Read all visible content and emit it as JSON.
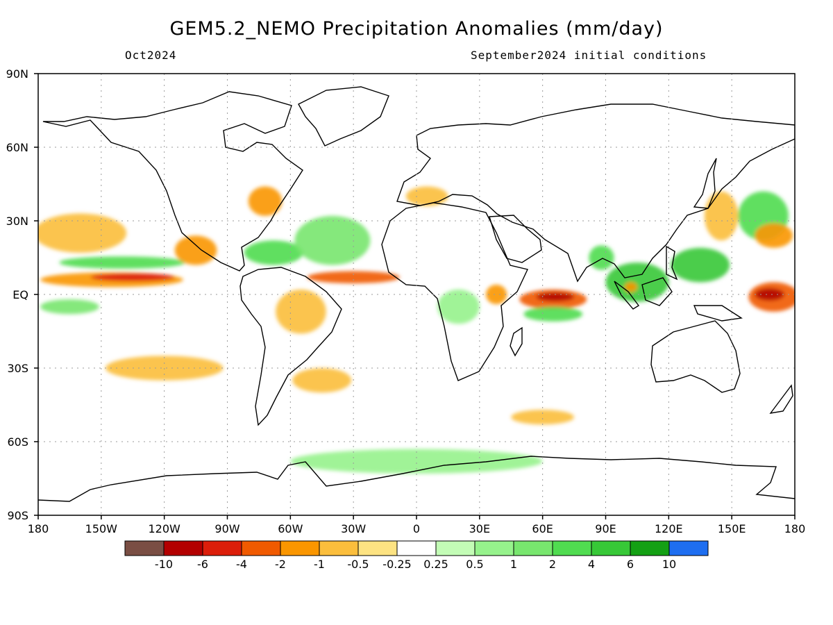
{
  "title": "GEM5.2_NEMO Precipitation Anomalies (mm/day)",
  "subtitle_left": "Oct2024",
  "subtitle_right": "September2024 initial conditions",
  "map": {
    "lon_range": [
      -180,
      180
    ],
    "lat_range": [
      -90,
      90
    ],
    "grid": "dotted",
    "lat_labels": [
      {
        "lat": 90,
        "label": "90N"
      },
      {
        "lat": 60,
        "label": "60N"
      },
      {
        "lat": 30,
        "label": "30N"
      },
      {
        "lat": 0,
        "label": "EQ"
      },
      {
        "lat": -30,
        "label": "30S"
      },
      {
        "lat": -60,
        "label": "60S"
      },
      {
        "lat": -90,
        "label": "90S"
      }
    ],
    "lon_labels": [
      {
        "lon": -180,
        "label": "180"
      },
      {
        "lon": -150,
        "label": "150W"
      },
      {
        "lon": -120,
        "label": "120W"
      },
      {
        "lon": -90,
        "label": "90W"
      },
      {
        "lon": -60,
        "label": "60W"
      },
      {
        "lon": -30,
        "label": "30W"
      },
      {
        "lon": 0,
        "label": "0"
      },
      {
        "lon": 30,
        "label": "30E"
      },
      {
        "lon": 60,
        "label": "60E"
      },
      {
        "lon": 90,
        "label": "90E"
      },
      {
        "lon": 120,
        "label": "120E"
      },
      {
        "lon": 150,
        "label": "150E"
      },
      {
        "lon": 180,
        "label": "180"
      }
    ]
  },
  "colorbar": {
    "colors": [
      "#7a4e44",
      "#b30000",
      "#dc1e0a",
      "#f05a00",
      "#fa9600",
      "#fbbe3c",
      "#fde382",
      "#ffffff",
      "#c3fcb6",
      "#96f28c",
      "#78e66e",
      "#50dc50",
      "#37c837",
      "#14a014",
      "#1e6ef0"
    ],
    "labels": [
      "-10",
      "-6",
      "-4",
      "-2",
      "-1",
      "-0.5",
      "-0.25",
      "0.25",
      "0.5",
      "1",
      "2",
      "4",
      "6",
      "10"
    ]
  },
  "anomaly_regions": [
    {
      "name": "trop-pacific-east-neg",
      "lon": -145,
      "lat": 6,
      "rx": 34,
      "ry": 3,
      "color": "#fa9600"
    },
    {
      "name": "trop-pacific-east-core",
      "lon": -135,
      "lat": 7,
      "rx": 20,
      "ry": 1.6,
      "color": "#dc1e0a"
    },
    {
      "name": "trop-pacific-north-pos",
      "lon": -140,
      "lat": 13,
      "rx": 30,
      "ry": 2.5,
      "color": "#50dc50"
    },
    {
      "name": "trop-pacific-south-pos",
      "lon": -165,
      "lat": -5,
      "rx": 14,
      "ry": 3,
      "color": "#78e66e"
    },
    {
      "name": "pacific-north-neg",
      "lon": -160,
      "lat": 25,
      "rx": 22,
      "ry": 8,
      "color": "#fbbe3c"
    },
    {
      "name": "mexico-neg",
      "lon": -105,
      "lat": 18,
      "rx": 10,
      "ry": 6,
      "color": "#fa9600"
    },
    {
      "name": "atlantic-itcz-neg",
      "lon": -30,
      "lat": 7,
      "rx": 22,
      "ry": 2.5,
      "color": "#f05a00"
    },
    {
      "name": "caribbean-pos",
      "lon": -68,
      "lat": 17,
      "rx": 14,
      "ry": 5,
      "color": "#50dc50"
    },
    {
      "name": "north-atlantic-pos",
      "lon": -40,
      "lat": 22,
      "rx": 18,
      "ry": 10,
      "color": "#78e66e"
    },
    {
      "name": "us-east-neg",
      "lon": -72,
      "lat": 38,
      "rx": 8,
      "ry": 6,
      "color": "#fa9600"
    },
    {
      "name": "amazon-neg",
      "lon": -55,
      "lat": -7,
      "rx": 12,
      "ry": 9,
      "color": "#fbbe3c"
    },
    {
      "name": "south-pacific-neg",
      "lon": -120,
      "lat": -30,
      "rx": 28,
      "ry": 5,
      "color": "#fbbe3c"
    },
    {
      "name": "south-atlantic-neg",
      "lon": -45,
      "lat": -35,
      "rx": 14,
      "ry": 5,
      "color": "#fbbe3c"
    },
    {
      "name": "europe-neg",
      "lon": 5,
      "lat": 40,
      "rx": 10,
      "ry": 4,
      "color": "#fbbe3c"
    },
    {
      "name": "central-africa-pos",
      "lon": 20,
      "lat": -5,
      "rx": 10,
      "ry": 7,
      "color": "#96f28c"
    },
    {
      "name": "east-africa-neg",
      "lon": 38,
      "lat": 0,
      "rx": 5,
      "ry": 4,
      "color": "#fa9600"
    },
    {
      "name": "indian-ocean-neg",
      "lon": 65,
      "lat": -2,
      "rx": 16,
      "ry": 4,
      "color": "#f05a00"
    },
    {
      "name": "indian-ocean-core",
      "lon": 66,
      "lat": -1,
      "rx": 9,
      "ry": 1.8,
      "color": "#b30000"
    },
    {
      "name": "indian-ocean-south-pos",
      "lon": 65,
      "lat": -8,
      "rx": 14,
      "ry": 3,
      "color": "#50dc50"
    },
    {
      "name": "maritime-pos",
      "lon": 105,
      "lat": 5,
      "rx": 15,
      "ry": 8,
      "color": "#37c837"
    },
    {
      "name": "sumatra-neg",
      "lon": 102,
      "lat": 3,
      "rx": 3,
      "ry": 2,
      "color": "#fa9600"
    },
    {
      "name": "bay-bengal-pos",
      "lon": 88,
      "lat": 15,
      "rx": 6,
      "ry": 5,
      "color": "#50dc50"
    },
    {
      "name": "west-pacific-pos",
      "lon": 135,
      "lat": 12,
      "rx": 14,
      "ry": 7,
      "color": "#37c837"
    },
    {
      "name": "central-pacific-neg",
      "lon": 170,
      "lat": -1,
      "rx": 12,
      "ry": 6,
      "color": "#f05a00"
    },
    {
      "name": "central-pacific-core",
      "lon": 168,
      "lat": 0,
      "rx": 7,
      "ry": 2.5,
      "color": "#b30000"
    },
    {
      "name": "japan-neg",
      "lon": 145,
      "lat": 32,
      "rx": 8,
      "ry": 10,
      "color": "#fbbe3c"
    },
    {
      "name": "north-pacific-west-pos",
      "lon": 165,
      "lat": 32,
      "rx": 12,
      "ry": 10,
      "color": "#50dc50"
    },
    {
      "name": "north-pacific-east-neg",
      "lon": 170,
      "lat": 24,
      "rx": 9,
      "ry": 5,
      "color": "#fa9600"
    },
    {
      "name": "southern-ocean-pos",
      "lon": 0,
      "lat": -68,
      "rx": 60,
      "ry": 5,
      "color": "#96f28c"
    },
    {
      "name": "south-indian-neg",
      "lon": 60,
      "lat": -50,
      "rx": 15,
      "ry": 3,
      "color": "#fbbe3c"
    }
  ]
}
